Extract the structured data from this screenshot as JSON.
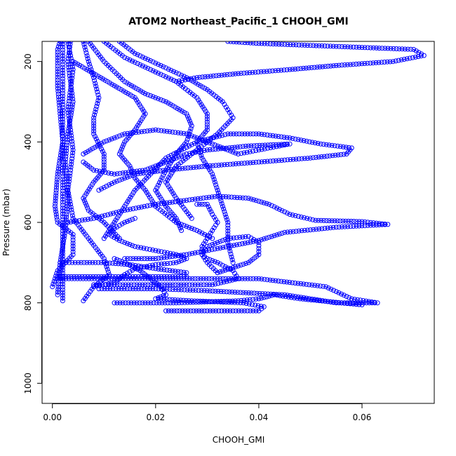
{
  "chart_data": {
    "type": "line",
    "title": "ATOM2 Northeast_Pacific_1 CHOOH_GMI",
    "xlabel": "CHOOH_GMI",
    "ylabel": "Pressure (mbar)",
    "xlim": [
      -0.002,
      0.074
    ],
    "ylim": [
      1050,
      150
    ],
    "y_reversed": true,
    "x_ticks": [
      0.0,
      0.02,
      0.04,
      0.06
    ],
    "x_tick_labels": [
      "0.00",
      "0.02",
      "0.04",
      "0.06"
    ],
    "y_ticks": [
      200,
      400,
      600,
      800,
      1000
    ],
    "y_tick_labels": [
      "200",
      "400",
      "600",
      "800",
      "1000"
    ],
    "grid": false,
    "marker": "open-circle",
    "line_style": "dashed",
    "color": "#0000ff",
    "series": [
      {
        "points": [
          [
            0.002,
            795
          ],
          [
            0.002,
            740
          ],
          [
            0.002,
            650
          ],
          [
            0.002,
            550
          ],
          [
            0.002,
            450
          ],
          [
            0.002,
            350
          ],
          [
            0.002,
            250
          ],
          [
            0.002,
            150
          ]
        ]
      },
      {
        "points": [
          [
            0.001,
            780
          ],
          [
            0.0015,
            700
          ],
          [
            0.0025,
            620
          ],
          [
            0.003,
            540
          ],
          [
            0.0025,
            450
          ],
          [
            0.003,
            380
          ],
          [
            0.004,
            300
          ],
          [
            0.003,
            200
          ],
          [
            0.0035,
            150
          ]
        ]
      },
      {
        "points": [
          [
            0.006,
            795
          ],
          [
            0.008,
            760
          ],
          [
            0.011,
            730
          ],
          [
            0.01,
            690
          ],
          [
            0.007,
            640
          ],
          [
            0.004,
            590
          ],
          [
            0.003,
            520
          ],
          [
            0.004,
            420
          ],
          [
            0.003,
            320
          ],
          [
            0.004,
            220
          ],
          [
            0.003,
            150
          ]
        ]
      },
      {
        "points": [
          [
            0.0,
            760
          ],
          [
            0.001,
            720
          ],
          [
            0.004,
            680
          ],
          [
            0.004,
            630
          ],
          [
            0.001,
            600
          ],
          [
            0.0005,
            560
          ],
          [
            0.001,
            480
          ],
          [
            0.002,
            400
          ],
          [
            0.0015,
            330
          ],
          [
            0.001,
            260
          ],
          [
            0.001,
            170
          ],
          [
            0.0015,
            150
          ]
        ]
      },
      {
        "points": [
          [
            0.001,
            735
          ],
          [
            0.01,
            735
          ],
          [
            0.02,
            735
          ],
          [
            0.026,
            735
          ],
          [
            0.026,
            725
          ],
          [
            0.02,
            715
          ],
          [
            0.015,
            705
          ],
          [
            0.01,
            700
          ],
          [
            0.005,
            700
          ],
          [
            0.0015,
            700
          ]
        ]
      },
      {
        "points": [
          [
            0.001,
            740
          ],
          [
            0.012,
            740
          ],
          [
            0.025,
            740
          ],
          [
            0.04,
            740
          ],
          [
            0.053,
            760
          ],
          [
            0.058,
            790
          ],
          [
            0.063,
            800
          ],
          [
            0.055,
            800
          ],
          [
            0.045,
            780
          ],
          [
            0.03,
            770
          ],
          [
            0.02,
            765
          ],
          [
            0.009,
            765
          ]
        ]
      },
      {
        "points": [
          [
            0.008,
            755
          ],
          [
            0.012,
            755
          ],
          [
            0.018,
            755
          ],
          [
            0.026,
            755
          ],
          [
            0.031,
            755
          ],
          [
            0.036,
            740
          ],
          [
            0.035,
            720
          ],
          [
            0.032,
            700
          ],
          [
            0.03,
            690
          ],
          [
            0.029,
            680
          ],
          [
            0.029,
            660
          ],
          [
            0.03,
            640
          ],
          [
            0.031,
            620
          ],
          [
            0.032,
            600
          ],
          [
            0.031,
            580
          ],
          [
            0.03,
            555
          ],
          [
            0.028,
            555
          ]
        ]
      },
      {
        "points": [
          [
            0.032,
            725
          ],
          [
            0.038,
            700
          ],
          [
            0.04,
            680
          ],
          [
            0.04,
            650
          ],
          [
            0.038,
            635
          ],
          [
            0.034,
            640
          ],
          [
            0.03,
            660
          ],
          [
            0.029,
            680
          ],
          [
            0.03,
            700
          ],
          [
            0.032,
            725
          ]
        ]
      },
      {
        "points": [
          [
            0.022,
            820
          ],
          [
            0.03,
            820
          ],
          [
            0.04,
            820
          ],
          [
            0.041,
            810
          ],
          [
            0.037,
            800
          ],
          [
            0.027,
            795
          ],
          [
            0.02,
            790
          ],
          [
            0.022,
            780
          ],
          [
            0.021,
            760
          ],
          [
            0.019,
            740
          ],
          [
            0.017,
            720
          ],
          [
            0.014,
            700
          ],
          [
            0.012,
            690
          ]
        ]
      },
      {
        "points": [
          [
            0.008,
            760
          ],
          [
            0.012,
            750
          ],
          [
            0.014,
            730
          ],
          [
            0.016,
            715
          ],
          [
            0.02,
            705
          ],
          [
            0.024,
            700
          ],
          [
            0.026,
            690
          ],
          [
            0.024,
            680
          ],
          [
            0.02,
            670
          ],
          [
            0.016,
            660
          ],
          [
            0.013,
            645
          ],
          [
            0.011,
            630
          ],
          [
            0.012,
            615
          ],
          [
            0.014,
            600
          ],
          [
            0.016,
            590
          ]
        ]
      },
      {
        "points": [
          [
            0.012,
            800
          ],
          [
            0.024,
            800
          ],
          [
            0.036,
            795
          ],
          [
            0.04,
            790
          ],
          [
            0.043,
            780
          ],
          [
            0.048,
            790
          ],
          [
            0.056,
            800
          ],
          [
            0.06,
            805
          ],
          [
            0.056,
            800
          ]
        ]
      },
      {
        "points": [
          [
            0.003,
            600
          ],
          [
            0.008,
            590
          ],
          [
            0.014,
            570
          ],
          [
            0.02,
            555
          ],
          [
            0.026,
            545
          ],
          [
            0.032,
            535
          ],
          [
            0.038,
            540
          ],
          [
            0.042,
            555
          ],
          [
            0.046,
            580
          ],
          [
            0.051,
            595
          ],
          [
            0.06,
            598
          ],
          [
            0.065,
            605
          ],
          [
            0.055,
            612
          ],
          [
            0.045,
            625
          ],
          [
            0.04,
            645
          ],
          [
            0.032,
            665
          ],
          [
            0.026,
            680
          ],
          [
            0.02,
            690
          ],
          [
            0.014,
            690
          ]
        ]
      },
      {
        "points": [
          [
            0.01,
            640
          ],
          [
            0.012,
            600
          ],
          [
            0.014,
            560
          ],
          [
            0.016,
            520
          ],
          [
            0.019,
            480
          ],
          [
            0.022,
            440
          ],
          [
            0.028,
            400
          ],
          [
            0.034,
            380
          ],
          [
            0.04,
            380
          ],
          [
            0.046,
            390
          ],
          [
            0.052,
            405
          ],
          [
            0.058,
            415
          ],
          [
            0.057,
            430
          ],
          [
            0.05,
            440
          ],
          [
            0.04,
            450
          ],
          [
            0.03,
            460
          ],
          [
            0.022,
            470
          ],
          [
            0.016,
            480
          ],
          [
            0.012,
            500
          ],
          [
            0.009,
            520
          ]
        ]
      },
      {
        "points": [
          [
            0.006,
            430
          ],
          [
            0.01,
            400
          ],
          [
            0.014,
            380
          ],
          [
            0.02,
            370
          ],
          [
            0.026,
            380
          ],
          [
            0.03,
            400
          ],
          [
            0.034,
            420
          ],
          [
            0.036,
            430
          ],
          [
            0.04,
            420
          ],
          [
            0.044,
            410
          ],
          [
            0.046,
            405
          ],
          [
            0.038,
            410
          ],
          [
            0.03,
            420
          ],
          [
            0.026,
            430
          ],
          [
            0.022,
            450
          ],
          [
            0.018,
            470
          ],
          [
            0.012,
            480
          ],
          [
            0.008,
            470
          ],
          [
            0.006,
            450
          ]
        ]
      },
      {
        "points": [
          [
            0.024,
            250
          ],
          [
            0.028,
            240
          ],
          [
            0.036,
            230
          ],
          [
            0.046,
            220
          ],
          [
            0.055,
            210
          ],
          [
            0.066,
            200
          ],
          [
            0.072,
            185
          ],
          [
            0.07,
            170
          ],
          [
            0.06,
            165
          ],
          [
            0.05,
            160
          ],
          [
            0.04,
            155
          ],
          [
            0.034,
            150
          ]
        ]
      },
      {
        "points": [
          [
            0.004,
            200
          ],
          [
            0.008,
            230
          ],
          [
            0.012,
            260
          ],
          [
            0.016,
            290
          ],
          [
            0.018,
            330
          ],
          [
            0.016,
            370
          ],
          [
            0.014,
            400
          ],
          [
            0.013,
            430
          ],
          [
            0.015,
            460
          ],
          [
            0.016,
            490
          ],
          [
            0.018,
            520
          ],
          [
            0.02,
            560
          ],
          [
            0.024,
            600
          ],
          [
            0.028,
            620
          ],
          [
            0.031,
            640
          ]
        ]
      },
      {
        "points": [
          [
            0.007,
            150
          ],
          [
            0.01,
            200
          ],
          [
            0.014,
            250
          ],
          [
            0.018,
            280
          ],
          [
            0.022,
            300
          ],
          [
            0.026,
            330
          ],
          [
            0.027,
            360
          ],
          [
            0.026,
            400
          ],
          [
            0.024,
            430
          ],
          [
            0.022,
            470
          ],
          [
            0.02,
            520
          ],
          [
            0.022,
            560
          ],
          [
            0.024,
            590
          ],
          [
            0.025,
            620
          ]
        ]
      },
      {
        "points": [
          [
            0.01,
            150
          ],
          [
            0.014,
            190
          ],
          [
            0.019,
            220
          ],
          [
            0.024,
            250
          ],
          [
            0.028,
            290
          ],
          [
            0.03,
            330
          ],
          [
            0.03,
            370
          ],
          [
            0.028,
            400
          ],
          [
            0.029,
            440
          ],
          [
            0.031,
            480
          ],
          [
            0.032,
            520
          ],
          [
            0.033,
            560
          ],
          [
            0.034,
            600
          ],
          [
            0.034,
            650
          ],
          [
            0.035,
            700
          ]
        ]
      },
      {
        "points": [
          [
            0.013,
            150
          ],
          [
            0.016,
            180
          ],
          [
            0.021,
            210
          ],
          [
            0.026,
            240
          ],
          [
            0.03,
            270
          ],
          [
            0.033,
            300
          ],
          [
            0.034,
            320
          ],
          [
            0.035,
            340
          ],
          [
            0.032,
            380
          ],
          [
            0.028,
            420
          ],
          [
            0.024,
            460
          ],
          [
            0.022,
            500
          ],
          [
            0.024,
            540
          ],
          [
            0.027,
            590
          ]
        ]
      },
      {
        "points": [
          [
            0.006,
            150
          ],
          [
            0.007,
            200
          ],
          [
            0.008,
            240
          ],
          [
            0.009,
            290
          ],
          [
            0.008,
            340
          ],
          [
            0.008,
            380
          ],
          [
            0.01,
            430
          ],
          [
            0.01,
            470
          ],
          [
            0.008,
            500
          ],
          [
            0.006,
            540
          ],
          [
            0.007,
            570
          ],
          [
            0.01,
            600
          ],
          [
            0.013,
            640
          ]
        ]
      }
    ]
  }
}
